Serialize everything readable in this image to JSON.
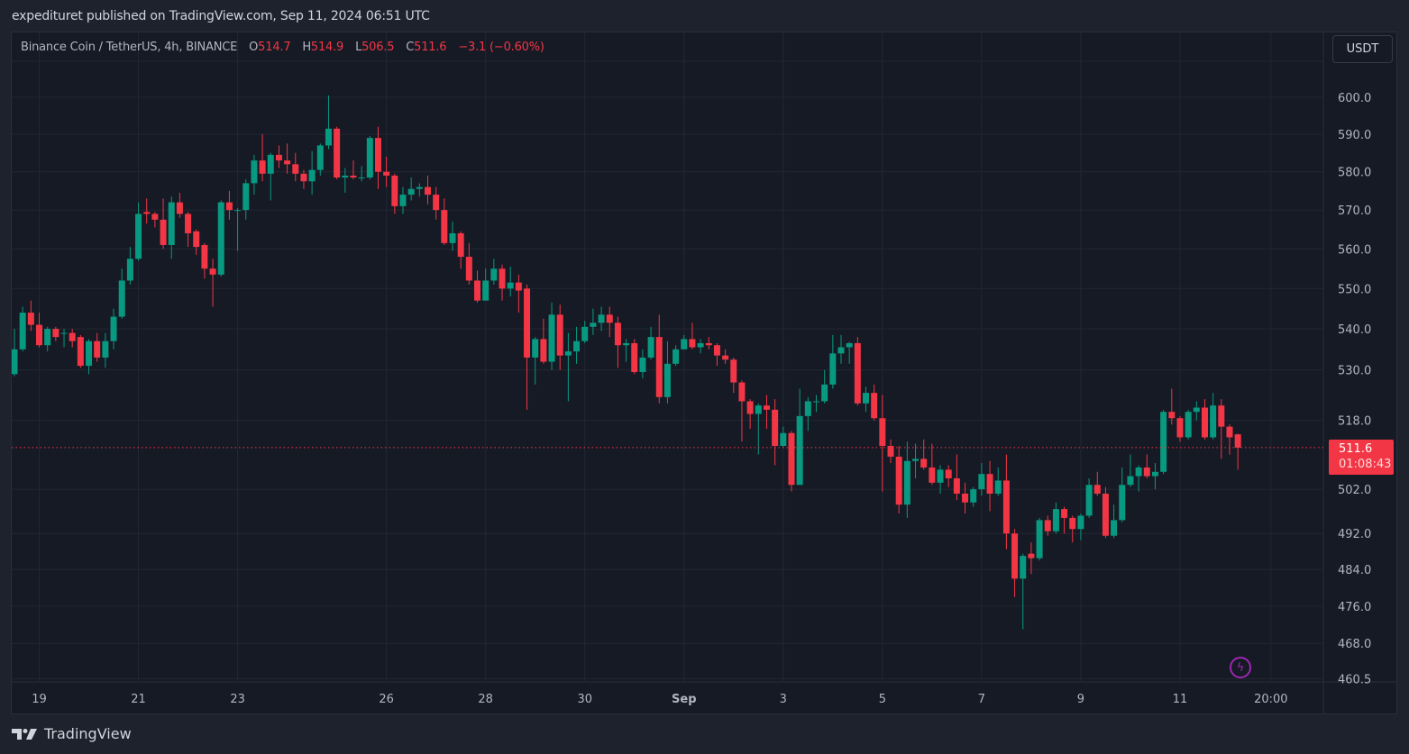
{
  "header": {
    "publish_line": "expedituret published on TradingView.com, Sep 11, 2024 06:51 UTC"
  },
  "legend": {
    "symbol": "Binance Coin / TetherUS, 4h, BINANCE",
    "o_label": "O",
    "o": "514.7",
    "h_label": "H",
    "h": "514.9",
    "l_label": "L",
    "l": "506.5",
    "c_label": "C",
    "c": "511.6",
    "change": "−3.1 (−0.60%)"
  },
  "currency": "USDT",
  "last_price": {
    "value": "511.6",
    "countdown": "01:08:43"
  },
  "footer": {
    "brand": "TradingView"
  },
  "colors": {
    "up": "#089981",
    "down": "#f23645",
    "background": "#161a25",
    "grid": "#232733",
    "axis_text": "#b2b5be",
    "alert": "#9c27b0"
  },
  "icons": {
    "alert": "lightning-icon",
    "logo": "tradingview-logo-icon"
  },
  "chart_data": {
    "type": "candlestick",
    "title": "Binance Coin / TetherUS, 4h, BINANCE",
    "interval": "4h",
    "x_start": "2024-08-18T12:00:00Z",
    "y_scale": "log",
    "ylim": [
      460.5,
      610
    ],
    "grid": true,
    "last_price": 511.6,
    "y_ticks": [
      "600.0",
      "590.0",
      "580.0",
      "570.0",
      "560.0",
      "550.0",
      "540.0",
      "530.0",
      "518.0",
      "502.0",
      "492.0",
      "484.0",
      "476.0",
      "468.0",
      "460.5"
    ],
    "x_ticks": [
      {
        "label": "19",
        "t": "2024-08-19T00:00:00Z"
      },
      {
        "label": "21",
        "t": "2024-08-21T00:00:00Z"
      },
      {
        "label": "23",
        "t": "2024-08-23T00:00:00Z"
      },
      {
        "label": "26",
        "t": "2024-08-26T00:00:00Z"
      },
      {
        "label": "28",
        "t": "2024-08-28T00:00:00Z"
      },
      {
        "label": "30",
        "t": "2024-08-30T00:00:00Z"
      },
      {
        "label": "Sep",
        "t": "2024-09-01T00:00:00Z"
      },
      {
        "label": "3",
        "t": "2024-09-03T00:00:00Z"
      },
      {
        "label": "5",
        "t": "2024-09-05T00:00:00Z"
      },
      {
        "label": "7",
        "t": "2024-09-07T00:00:00Z"
      },
      {
        "label": "9",
        "t": "2024-09-09T00:00:00Z"
      },
      {
        "label": "11",
        "t": "2024-09-11T00:00:00Z"
      },
      {
        "label": "20:00",
        "t": "2024-09-12T20:00:00Z"
      }
    ],
    "ohlc_columns": [
      "open",
      "high",
      "low",
      "close"
    ],
    "ohlc": [
      [
        529,
        540,
        528.5,
        535
      ],
      [
        535,
        545.5,
        534.5,
        544
      ],
      [
        544,
        547,
        539.5,
        541
      ],
      [
        541,
        544,
        535.5,
        536
      ],
      [
        536,
        540.5,
        534.5,
        540
      ],
      [
        540,
        540.5,
        537,
        538
      ],
      [
        539,
        540,
        535.5,
        539
      ],
      [
        539,
        540,
        535.5,
        537
      ],
      [
        538,
        538.5,
        530.5,
        531
      ],
      [
        531,
        537.5,
        529,
        537
      ],
      [
        537,
        539,
        532,
        533
      ],
      [
        533,
        539,
        530.5,
        537
      ],
      [
        537,
        545,
        535,
        543
      ],
      [
        543,
        555,
        542.5,
        552
      ],
      [
        552,
        560.5,
        551,
        557.5
      ],
      [
        557.5,
        572,
        557,
        569
      ],
      [
        569.5,
        573,
        566.5,
        569
      ],
      [
        569,
        569.5,
        565.5,
        567.5
      ],
      [
        567.5,
        573,
        560,
        561
      ],
      [
        561,
        573.5,
        557.5,
        572
      ],
      [
        572,
        574.5,
        568,
        569
      ],
      [
        569,
        569.5,
        560.5,
        564
      ],
      [
        564.5,
        565,
        558.5,
        560.5
      ],
      [
        561,
        561.5,
        552.5,
        555
      ],
      [
        555,
        557.5,
        545.5,
        553.5
      ],
      [
        553.5,
        572.5,
        553,
        572
      ],
      [
        572,
        575,
        567.5,
        570
      ],
      [
        570,
        570.5,
        559.5,
        570
      ],
      [
        570,
        578,
        567.5,
        577
      ],
      [
        577,
        584.5,
        574,
        583
      ],
      [
        583,
        590,
        577.5,
        579.5
      ],
      [
        579.5,
        585,
        572.5,
        584.5
      ],
      [
        584.5,
        587,
        581,
        583
      ],
      [
        583,
        587.5,
        579.5,
        582
      ],
      [
        582,
        585,
        577.5,
        579.5
      ],
      [
        579.5,
        580.5,
        575.5,
        577.5
      ],
      [
        577.5,
        585.5,
        574,
        580.5
      ],
      [
        580.5,
        587.5,
        579,
        587
      ],
      [
        587,
        600.5,
        586,
        591.5
      ],
      [
        591.5,
        592,
        578,
        578.5
      ],
      [
        578.5,
        581,
        574.5,
        579
      ],
      [
        579,
        583,
        578,
        578.5
      ],
      [
        578.5,
        581.5,
        577.5,
        578.5
      ],
      [
        578.5,
        589.5,
        578,
        589
      ],
      [
        589,
        592,
        575.5,
        580
      ],
      [
        580,
        584,
        576,
        579
      ],
      [
        579,
        579.5,
        569,
        571
      ],
      [
        571,
        576,
        569,
        574
      ],
      [
        574,
        578.5,
        572.5,
        575.5
      ],
      [
        575.5,
        577,
        573.5,
        576
      ],
      [
        576,
        579,
        571.5,
        574
      ],
      [
        574,
        576,
        567.5,
        570
      ],
      [
        570,
        573,
        561,
        561.5
      ],
      [
        561.5,
        567,
        559.5,
        564
      ],
      [
        564,
        564.5,
        555,
        558
      ],
      [
        558,
        561.5,
        551,
        552
      ],
      [
        552,
        554.5,
        546.5,
        547
      ],
      [
        547,
        555,
        547,
        552
      ],
      [
        552,
        557.5,
        551,
        555
      ],
      [
        555,
        556,
        547,
        550
      ],
      [
        550,
        555.5,
        548,
        551.5
      ],
      [
        551.5,
        553.5,
        544,
        549.5
      ],
      [
        550,
        551,
        520.5,
        533
      ],
      [
        533,
        538,
        526.5,
        537.5
      ],
      [
        537.5,
        542.5,
        531.5,
        532
      ],
      [
        532,
        546.5,
        530,
        543.5
      ],
      [
        543.5,
        546,
        530,
        533.5
      ],
      [
        533.5,
        539,
        522.5,
        534.5
      ],
      [
        534.5,
        540.5,
        531.5,
        537
      ],
      [
        537,
        542,
        536.5,
        540.5
      ],
      [
        540.5,
        545,
        538.5,
        541.5
      ],
      [
        541.5,
        545.5,
        539.5,
        543.5
      ],
      [
        543.5,
        545.5,
        538,
        541.5
      ],
      [
        541.5,
        543,
        530.5,
        536
      ],
      [
        536,
        537.5,
        532,
        536.5
      ],
      [
        536.5,
        537.5,
        529,
        529.5
      ],
      [
        529.5,
        535,
        528,
        533
      ],
      [
        533,
        540.5,
        532.5,
        538
      ],
      [
        538,
        543.5,
        522,
        523.5
      ],
      [
        523.5,
        537,
        522,
        531.5
      ],
      [
        531.5,
        536,
        531,
        535
      ],
      [
        535,
        538.5,
        535,
        537.5
      ],
      [
        537.5,
        541.5,
        535,
        535.5
      ],
      [
        535.5,
        537.5,
        534,
        536.5
      ],
      [
        536.5,
        538,
        535,
        536
      ],
      [
        536,
        536.5,
        531,
        533.5
      ],
      [
        533.5,
        535,
        531.5,
        532.5
      ],
      [
        532.5,
        533,
        524.5,
        527
      ],
      [
        527,
        527.5,
        513,
        522.5
      ],
      [
        522.5,
        523,
        516,
        519.5
      ],
      [
        519.5,
        522,
        510,
        521.5
      ],
      [
        521.5,
        524,
        516,
        520.5
      ],
      [
        520.5,
        523,
        507.5,
        512
      ],
      [
        512,
        516.5,
        511.5,
        515
      ],
      [
        515,
        515.5,
        501.5,
        503
      ],
      [
        503,
        525.5,
        503,
        519
      ],
      [
        519,
        523.5,
        515.5,
        522.5
      ],
      [
        522.5,
        524,
        520,
        522.5
      ],
      [
        522.5,
        530,
        522,
        526.5
      ],
      [
        526.5,
        538.5,
        525.5,
        534
      ],
      [
        534,
        538.5,
        531.5,
        535.5
      ],
      [
        535.5,
        536.8,
        531.5,
        536.5
      ],
      [
        536.5,
        538,
        521.5,
        522
      ],
      [
        522,
        526,
        520,
        524.5
      ],
      [
        524.5,
        526.5,
        518,
        518.5
      ],
      [
        518.5,
        524,
        501.5,
        512
      ],
      [
        512,
        513.5,
        508,
        509.5
      ],
      [
        509.5,
        512,
        496.5,
        498.5
      ],
      [
        498.5,
        513,
        495.5,
        508.5
      ],
      [
        508.5,
        512.5,
        504.5,
        509
      ],
      [
        509,
        513.5,
        506.5,
        507
      ],
      [
        507,
        512.5,
        503,
        503.5
      ],
      [
        503.5,
        507.5,
        501,
        506.5
      ],
      [
        506.5,
        507.5,
        502.5,
        504.5
      ],
      [
        504.5,
        510,
        499.5,
        501
      ],
      [
        501,
        503.5,
        496.5,
        499
      ],
      [
        499,
        502.5,
        498,
        502
      ],
      [
        502,
        508,
        500.5,
        505.5
      ],
      [
        505.5,
        508.5,
        497,
        501
      ],
      [
        501,
        507,
        500.5,
        504
      ],
      [
        504,
        510,
        488.5,
        492
      ],
      [
        492,
        493,
        478,
        482
      ],
      [
        482,
        487.5,
        471,
        487
      ],
      [
        487.5,
        490,
        483,
        486.5
      ],
      [
        486.5,
        495.5,
        486,
        495
      ],
      [
        495,
        496,
        491.5,
        492.5
      ],
      [
        492.5,
        499,
        492,
        497.5
      ],
      [
        497.5,
        498,
        492,
        495.5
      ],
      [
        495.5,
        496,
        490,
        493
      ],
      [
        493,
        496.5,
        490.5,
        496
      ],
      [
        496,
        504.5,
        495.5,
        503
      ],
      [
        503,
        506,
        500.5,
        501
      ],
      [
        501,
        502.5,
        491,
        491.5
      ],
      [
        491.5,
        498.5,
        491,
        495
      ],
      [
        495,
        507,
        494.5,
        503
      ],
      [
        503,
        510,
        502.5,
        505
      ],
      [
        505,
        507.5,
        501.5,
        507
      ],
      [
        507,
        510,
        504.5,
        505
      ],
      [
        505,
        508,
        502,
        506
      ],
      [
        506,
        520.5,
        505.5,
        520
      ],
      [
        520,
        525.5,
        517,
        518.5
      ],
      [
        518.5,
        519,
        513,
        514
      ],
      [
        514,
        520.5,
        513.5,
        520
      ],
      [
        520,
        522.5,
        518,
        521
      ],
      [
        521,
        523,
        513.5,
        514
      ],
      [
        514,
        524.5,
        513.5,
        521.5
      ],
      [
        521.5,
        523,
        509,
        516.5
      ],
      [
        516.5,
        517,
        510,
        514
      ],
      [
        514.7,
        514.9,
        506.5,
        511.6
      ]
    ]
  }
}
